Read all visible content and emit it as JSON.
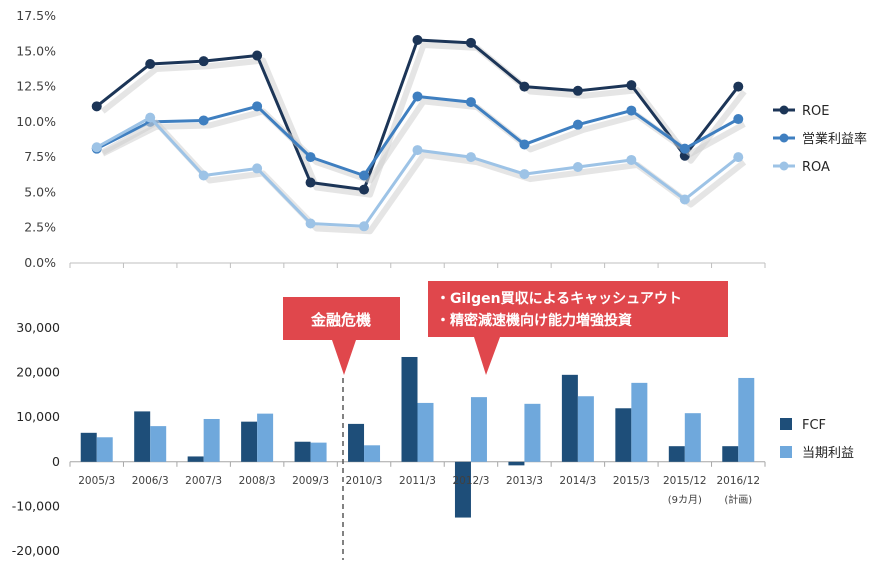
{
  "chart_data": [
    {
      "type": "line",
      "categories": [
        "2005/3",
        "2006/3",
        "2007/3",
        "2008/3",
        "2009/3",
        "2010/3",
        "2011/3",
        "2012/3",
        "2013/3",
        "2014/3",
        "2015/3",
        "2015/12",
        "2016/12"
      ],
      "ylim": [
        0,
        17.5
      ],
      "yticks": [
        "0.0%",
        "2.5%",
        "5.0%",
        "7.5%",
        "10.0%",
        "12.5%",
        "15.0%",
        "17.5%"
      ],
      "grid": false,
      "legend": "right",
      "series": [
        {
          "name": "ROE",
          "color": "#1c3557",
          "values": [
            11.1,
            14.1,
            14.3,
            14.7,
            5.7,
            5.2,
            15.8,
            15.6,
            12.5,
            12.2,
            12.6,
            7.6,
            12.5
          ]
        },
        {
          "name": "営業利益率",
          "color": "#3f7fc0",
          "values": [
            8.1,
            10.0,
            10.1,
            11.1,
            7.5,
            6.2,
            11.8,
            11.4,
            8.4,
            9.8,
            10.8,
            8.1,
            10.2
          ]
        },
        {
          "name": "ROA",
          "color": "#9dc3e6",
          "values": [
            8.2,
            10.3,
            6.2,
            6.7,
            2.8,
            2.6,
            8.0,
            7.5,
            6.3,
            6.8,
            7.3,
            4.5,
            7.5
          ]
        }
      ]
    },
    {
      "type": "bar",
      "categories": [
        "2005/3",
        "2006/3",
        "2007/3",
        "2008/3",
        "2009/3",
        "2010/3",
        "2011/3",
        "2012/3",
        "2013/3",
        "2014/3",
        "2015/3",
        "2015/12",
        "2016/12"
      ],
      "category_sublabels": [
        "",
        "",
        "",
        "",
        "",
        "",
        "",
        "",
        "",
        "",
        "",
        "(9カ月)",
        "(計画)"
      ],
      "ylim": [
        -20000,
        30000
      ],
      "yticks": [
        "-20,000",
        "-10,000",
        "0",
        "10,000",
        "20,000",
        "30,000"
      ],
      "legend": "right",
      "series": [
        {
          "name": "FCF",
          "color": "#1e4e79",
          "values": [
            6500,
            11300,
            1200,
            9000,
            4500,
            8500,
            23500,
            -12500,
            -800,
            19500,
            12000,
            3500,
            3500
          ]
        },
        {
          "name": "当期利益",
          "color": "#6fa8dc",
          "values": [
            5500,
            8000,
            9600,
            10800,
            4300,
            3700,
            13200,
            14500,
            13000,
            14700,
            17700,
            10900,
            18800
          ]
        }
      ],
      "annotations": [
        {
          "text": "金融危機",
          "color": "#e0474c"
        },
        {
          "lines": [
            "・Gilgen買収によるキャッシュアウト",
            "・精密減速機向け能力増強投資"
          ],
          "color": "#e0474c"
        }
      ]
    }
  ]
}
